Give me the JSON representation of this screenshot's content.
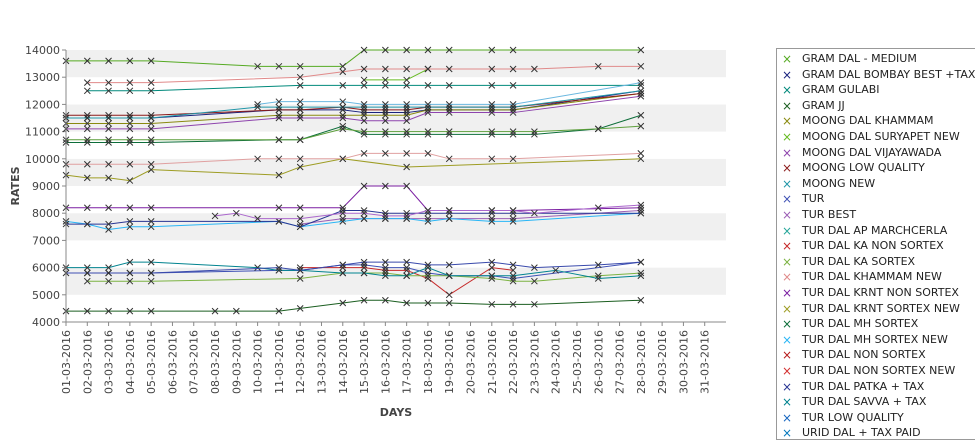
{
  "chart_data": {
    "type": "line",
    "title": "",
    "xlabel": "DAYS",
    "ylabel": "RATES",
    "ylim": [
      4000,
      14000
    ],
    "yticks": [
      4000,
      5000,
      6000,
      7000,
      8000,
      9000,
      10000,
      11000,
      12000,
      13000,
      14000
    ],
    "grid": "alternating horizontal bands",
    "legend_position": "right",
    "x": [
      "01-03-2016",
      "02-03-2016",
      "03-03-2016",
      "04-03-2016",
      "05-03-2016",
      "06-03-2016",
      "07-03-2016",
      "08-03-2016",
      "09-03-2016",
      "10-03-2016",
      "11-03-2016",
      "12-03-2016",
      "13-03-2016",
      "14-03-2016",
      "15-03-2016",
      "16-03-2016",
      "17-03-2016",
      "18-03-2016",
      "19-03-2016",
      "20-03-2016",
      "21-03-2016",
      "22-03-2016",
      "23-03-2016",
      "24-03-2016",
      "25-03-2016",
      "26-03-2016",
      "27-03-2016",
      "28-03-2016",
      "29-03-2016",
      "30-03-2016",
      "31-03-2016"
    ],
    "series": [
      {
        "name": "GRAM DAL - MEDIUM",
        "color": "#55aa22",
        "values": [
          13600,
          13600,
          13600,
          13600,
          13600,
          null,
          null,
          null,
          null,
          13400,
          13400,
          13400,
          null,
          13400,
          14000,
          14000,
          14000,
          14000,
          14000,
          null,
          14000,
          14000,
          null,
          null,
          null,
          null,
          null,
          14000,
          null,
          null,
          null
        ]
      },
      {
        "name": "GRAM DAL BOMBAY BEST +TAX",
        "color": "#1a237e",
        "values": [
          11500,
          11500,
          11500,
          11500,
          11500,
          null,
          null,
          null,
          null,
          null,
          11800,
          11800,
          null,
          11800,
          11700,
          11700,
          11700,
          11800,
          11800,
          null,
          11800,
          11800,
          null,
          null,
          null,
          null,
          null,
          12500,
          null,
          null,
          null
        ]
      },
      {
        "name": "GRAM GULABI",
        "color": "#00897b",
        "values": [
          null,
          12500,
          12500,
          12500,
          12500,
          null,
          null,
          null,
          null,
          null,
          null,
          12700,
          null,
          12700,
          12700,
          12700,
          12700,
          12700,
          12700,
          null,
          12700,
          12700,
          null,
          null,
          null,
          null,
          null,
          12700,
          null,
          null,
          null
        ]
      },
      {
        "name": "GRAM JJ",
        "color": "#1b5e20",
        "values": [
          4400,
          4400,
          4400,
          4400,
          4400,
          null,
          null,
          4400,
          4400,
          null,
          4400,
          4500,
          null,
          4700,
          4800,
          4800,
          4700,
          4700,
          4700,
          null,
          4650,
          4650,
          4650,
          null,
          null,
          null,
          null,
          4800,
          null,
          null,
          null
        ]
      },
      {
        "name": "MOONG DAL KHAMMAM",
        "color": "#8a8a10",
        "values": [
          11300,
          11300,
          11300,
          11300,
          11300,
          null,
          null,
          null,
          null,
          null,
          11600,
          11600,
          null,
          11600,
          11600,
          11600,
          11600,
          11800,
          11800,
          null,
          11800,
          11800,
          null,
          null,
          null,
          null,
          null,
          12400,
          null,
          null,
          null
        ]
      },
      {
        "name": "MOONG DAL SURYAPET NEW",
        "color": "#66bb22",
        "values": [
          null,
          null,
          null,
          null,
          null,
          null,
          null,
          null,
          null,
          null,
          null,
          null,
          null,
          null,
          12900,
          12900,
          12900,
          13300,
          null,
          null,
          null,
          null,
          null,
          null,
          null,
          null,
          null,
          null,
          null,
          null,
          null
        ]
      },
      {
        "name": "MOONG DAL VIJAYAWADA",
        "color": "#8e44ad",
        "values": [
          11100,
          11100,
          11100,
          11100,
          11100,
          null,
          null,
          null,
          null,
          null,
          11500,
          11500,
          null,
          11500,
          11400,
          11400,
          11400,
          11700,
          11700,
          null,
          11700,
          11700,
          null,
          null,
          null,
          null,
          null,
          12300,
          null,
          null,
          null
        ]
      },
      {
        "name": "MOONG LOW QUALITY",
        "color": "#8b1a1a",
        "values": [
          11600,
          11600,
          11600,
          11600,
          11600,
          null,
          null,
          null,
          null,
          null,
          11800,
          11800,
          null,
          11900,
          11800,
          11800,
          11800,
          11900,
          11900,
          null,
          11900,
          11900,
          null,
          null,
          null,
          null,
          null,
          12400,
          null,
          null,
          null
        ]
      },
      {
        "name": "MOONG NEW",
        "color": "#2196a8",
        "values": [
          11500,
          11500,
          11500,
          11500,
          11500,
          null,
          null,
          null,
          null,
          11900,
          11900,
          11900,
          null,
          11900,
          11900,
          11900,
          11900,
          11900,
          11900,
          null,
          11900,
          11900,
          null,
          null,
          null,
          null,
          null,
          12500,
          null,
          null,
          null
        ]
      },
      {
        "name": "TUR",
        "color": "#3f51b5",
        "values": [
          5800,
          5800,
          5800,
          5800,
          5800,
          null,
          null,
          null,
          null,
          null,
          5900,
          5900,
          null,
          6100,
          6100,
          6000,
          6000,
          5800,
          5700,
          null,
          5700,
          5600,
          null,
          null,
          null,
          null,
          null,
          6200,
          null,
          null,
          null
        ]
      },
      {
        "name": "TUR BEST",
        "color": "#9c5fb5",
        "values": [
          null,
          null,
          null,
          null,
          null,
          null,
          null,
          null,
          null,
          null,
          null,
          7600,
          null,
          7800,
          7800,
          7800,
          7800,
          7800,
          7800,
          null,
          7800,
          7800,
          null,
          null,
          null,
          null,
          null,
          8100,
          null,
          null,
          null
        ]
      },
      {
        "name": "TUR DAL AP MARCHCERLA",
        "color": "#26a69a",
        "values": [
          null,
          null,
          null,
          null,
          null,
          null,
          null,
          null,
          null,
          null,
          null,
          null,
          null,
          null,
          null,
          null,
          null,
          null,
          null,
          null,
          null,
          null,
          null,
          null,
          null,
          null,
          null,
          null,
          null,
          null,
          null
        ]
      },
      {
        "name": "TUR DAL KA NON SORTEX",
        "color": "#c62828",
        "values": [
          null,
          null,
          null,
          null,
          null,
          null,
          null,
          null,
          null,
          null,
          null,
          6000,
          null,
          6000,
          6000,
          5900,
          5900,
          5600,
          5000,
          null,
          6000,
          5900,
          null,
          null,
          null,
          null,
          null,
          null,
          null,
          null,
          null
        ]
      },
      {
        "name": "TUR DAL KA SORTEX",
        "color": "#7cb342",
        "values": [
          null,
          5500,
          5500,
          5500,
          5500,
          null,
          null,
          null,
          null,
          null,
          null,
          5600,
          null,
          5800,
          5800,
          5800,
          5700,
          5700,
          5700,
          null,
          5600,
          5500,
          5500,
          null,
          null,
          5700,
          null,
          5800,
          null,
          null,
          null
        ]
      },
      {
        "name": "TUR DAL KHAMMAM NEW",
        "color": "#e08a8a",
        "values": [
          null,
          12800,
          12800,
          12800,
          12800,
          null,
          null,
          null,
          null,
          null,
          null,
          13000,
          null,
          13200,
          13300,
          13300,
          13300,
          13300,
          13300,
          null,
          13300,
          13300,
          13300,
          null,
          null,
          13400,
          null,
          13400,
          null,
          null,
          null
        ]
      },
      {
        "name": "TUR DAL KRNT NON SORTEX",
        "color": "#7b1fa2",
        "values": [
          8200,
          8200,
          8200,
          8200,
          8200,
          null,
          null,
          null,
          null,
          null,
          8200,
          8200,
          null,
          8200,
          9000,
          9000,
          9000,
          8100,
          8100,
          null,
          8100,
          8100,
          null,
          null,
          null,
          null,
          null,
          8200,
          null,
          null,
          null
        ]
      },
      {
        "name": "TUR DAL KRNT SORTEX NEW",
        "color": "#9e9d24",
        "values": [
          9400,
          9300,
          9300,
          9200,
          9600,
          null,
          null,
          null,
          null,
          null,
          9400,
          9700,
          null,
          10000,
          null,
          null,
          9700,
          null,
          null,
          null,
          null,
          null,
          null,
          null,
          null,
          null,
          null,
          10000,
          null,
          null,
          null
        ]
      },
      {
        "name": "TUR DAL MH SORTEX",
        "color": "#0d6e3a",
        "values": [
          10600,
          10600,
          10600,
          10600,
          10600,
          null,
          null,
          null,
          null,
          null,
          10700,
          10700,
          null,
          11200,
          10900,
          10900,
          10900,
          10900,
          10900,
          null,
          10900,
          10900,
          10900,
          null,
          null,
          11100,
          null,
          11600,
          null,
          null,
          null
        ]
      },
      {
        "name": "TUR DAL MH SORTEX NEW",
        "color": "#29b6f6",
        "values": [
          7700,
          7600,
          7400,
          7500,
          7500,
          null,
          null,
          null,
          null,
          null,
          7700,
          7500,
          null,
          7700,
          7800,
          7800,
          7800,
          7700,
          7800,
          null,
          7700,
          7700,
          null,
          null,
          null,
          null,
          null,
          8000,
          null,
          null,
          null
        ]
      },
      {
        "name": "TUR DAL NON SORTEX",
        "color": "#b71c1c",
        "values": [
          null,
          null,
          null,
          null,
          null,
          null,
          null,
          null,
          null,
          null,
          null,
          null,
          null,
          null,
          null,
          null,
          null,
          null,
          null,
          null,
          null,
          null,
          null,
          null,
          null,
          null,
          null,
          null,
          null,
          null,
          null
        ]
      },
      {
        "name": "TUR DAL NON SORTEX NEW",
        "color": "#d32f2f",
        "values": [
          null,
          null,
          null,
          null,
          null,
          null,
          null,
          null,
          null,
          null,
          null,
          null,
          null,
          null,
          null,
          null,
          null,
          null,
          null,
          null,
          null,
          null,
          null,
          null,
          null,
          null,
          null,
          null,
          null,
          null,
          null
        ]
      },
      {
        "name": "TUR DAL PATKA + TAX",
        "color": "#283593",
        "values": [
          7600,
          7600,
          7600,
          7700,
          7700,
          null,
          null,
          null,
          null,
          null,
          7700,
          7500,
          null,
          8100,
          8100,
          8000,
          8000,
          8000,
          8000,
          null,
          8000,
          8000,
          null,
          null,
          null,
          null,
          null,
          8000,
          null,
          null,
          null
        ]
      },
      {
        "name": "TUR DAL SAVVA + TAX",
        "color": "#00838f",
        "values": [
          6000,
          6000,
          6000,
          6200,
          6200,
          null,
          null,
          null,
          null,
          6000,
          5900,
          5900,
          null,
          5800,
          5800,
          5700,
          5700,
          6000,
          5700,
          null,
          5700,
          5700,
          null,
          5900,
          null,
          5600,
          null,
          5700,
          null,
          null,
          null
        ]
      },
      {
        "name": "TUR LOW QUALITY",
        "color": "#1565c0",
        "values": [
          null,
          null,
          null,
          null,
          null,
          null,
          null,
          null,
          null,
          null,
          null,
          null,
          null,
          null,
          null,
          null,
          null,
          null,
          null,
          null,
          null,
          null,
          null,
          null,
          null,
          null,
          null,
          null,
          null,
          null,
          null
        ]
      },
      {
        "name": "URID DAL + TAX PAID",
        "color": "#0277bd",
        "values": [
          null,
          null,
          null,
          null,
          null,
          null,
          null,
          null,
          null,
          null,
          null,
          null,
          null,
          null,
          null,
          null,
          null,
          null,
          null,
          null,
          null,
          null,
          null,
          null,
          null,
          null,
          null,
          null,
          null,
          null,
          null
        ]
      },
      {
        "name": "",
        "color": "#aa66cc",
        "values": [
          null,
          null,
          null,
          null,
          null,
          null,
          null,
          7900,
          8000,
          7800,
          null,
          7800,
          null,
          8000,
          8000,
          7900,
          7900,
          8100,
          8100,
          null,
          8100,
          8100,
          8000,
          null,
          null,
          8200,
          null,
          8300,
          null,
          null,
          null
        ]
      },
      {
        "name": "",
        "color": "#e0a0a0",
        "values": [
          9800,
          9800,
          9800,
          9800,
          9800,
          null,
          null,
          null,
          null,
          10000,
          10000,
          10000,
          null,
          10000,
          10200,
          10200,
          10200,
          10200,
          10000,
          null,
          10000,
          10000,
          null,
          null,
          null,
          null,
          null,
          10200,
          null,
          null,
          null
        ]
      },
      {
        "name": "",
        "color": "#6bb8e0",
        "values": [
          null,
          null,
          null,
          null,
          null,
          null,
          null,
          null,
          null,
          12000,
          12100,
          12100,
          null,
          12100,
          12000,
          12000,
          12000,
          12000,
          12000,
          null,
          12000,
          12000,
          null,
          null,
          null,
          null,
          null,
          12800,
          null,
          null,
          null
        ]
      },
      {
        "name": "",
        "color": "#5c9e3a",
        "values": [
          10700,
          10700,
          10700,
          10700,
          10700,
          null,
          null,
          null,
          null,
          null,
          10700,
          10700,
          null,
          11100,
          11000,
          11000,
          11000,
          11000,
          11000,
          null,
          11000,
          11000,
          11000,
          null,
          null,
          11100,
          null,
          11200,
          null,
          null,
          null
        ]
      },
      {
        "name": "",
        "color": "#3949ab",
        "values": [
          null,
          5800,
          5800,
          5800,
          5800,
          null,
          null,
          null,
          null,
          null,
          6000,
          5900,
          null,
          6100,
          6200,
          6200,
          6200,
          6100,
          6100,
          null,
          6200,
          6100,
          6000,
          null,
          null,
          6100,
          null,
          6200,
          null,
          null,
          null
        ]
      }
    ]
  }
}
